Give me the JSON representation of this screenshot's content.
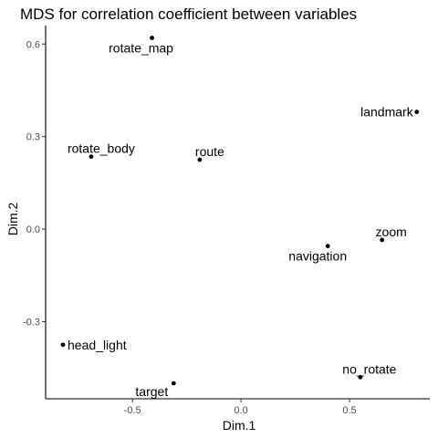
{
  "chart_data": {
    "type": "scatter",
    "title": "MDS for correlation coefficient between variables",
    "xlabel": "Dim.1",
    "ylabel": "Dim.2",
    "xlim": [
      -0.9,
      0.87
    ],
    "ylim": [
      -0.55,
      0.66
    ],
    "x_ticks": [
      -0.5,
      0.0,
      0.5
    ],
    "x_tick_labels": [
      "-0.5",
      "0.0",
      "0.5"
    ],
    "y_ticks": [
      -0.3,
      0.0,
      0.3,
      0.6
    ],
    "y_tick_labels": [
      "-0.3",
      "0.0",
      "0.3",
      "0.6"
    ],
    "grid": false,
    "points": [
      {
        "label": "rotate_map",
        "x": -0.41,
        "y": 0.62
      },
      {
        "label": "landmark",
        "x": 0.81,
        "y": 0.38
      },
      {
        "label": "rotate_body",
        "x": -0.69,
        "y": 0.235
      },
      {
        "label": "route",
        "x": -0.19,
        "y": 0.225
      },
      {
        "label": "zoom",
        "x": 0.65,
        "y": -0.035
      },
      {
        "label": "navigation",
        "x": 0.4,
        "y": -0.055
      },
      {
        "label": "head_light",
        "x": -0.82,
        "y": -0.375
      },
      {
        "label": "no_rotate",
        "x": 0.55,
        "y": -0.48
      },
      {
        "label": "target",
        "x": -0.31,
        "y": -0.5
      }
    ]
  }
}
